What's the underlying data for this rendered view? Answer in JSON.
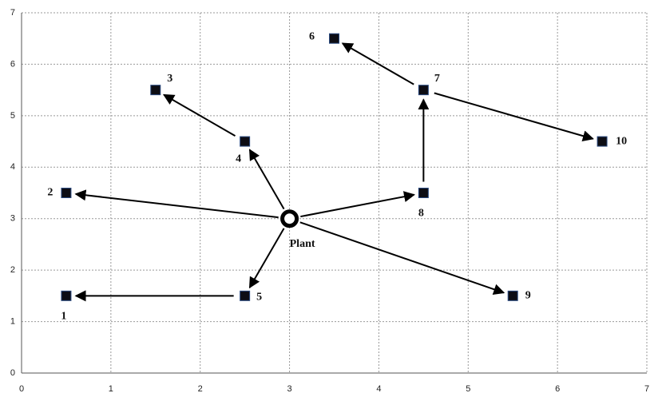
{
  "chart_data": {
    "type": "scatter",
    "nodes": [
      {
        "label": "1",
        "x": 0.5,
        "y": 1.5
      },
      {
        "label": "2",
        "x": 0.5,
        "y": 3.5
      },
      {
        "label": "3",
        "x": 1.5,
        "y": 5.5
      },
      {
        "label": "4",
        "x": 2.5,
        "y": 4.5
      },
      {
        "label": "5",
        "x": 2.5,
        "y": 1.5
      },
      {
        "label": "6",
        "x": 3.5,
        "y": 6.5
      },
      {
        "label": "7",
        "x": 4.5,
        "y": 5.5
      },
      {
        "label": "8",
        "x": 4.5,
        "y": 3.5
      },
      {
        "label": "9",
        "x": 5.5,
        "y": 1.5
      },
      {
        "label": "10",
        "x": 6.5,
        "y": 4.5
      },
      {
        "label": "Plant",
        "x": 3,
        "y": 3
      }
    ],
    "edges": [
      [
        10,
        1
      ],
      [
        10,
        3
      ],
      [
        3,
        2
      ],
      [
        10,
        4
      ],
      [
        4,
        0
      ],
      [
        10,
        7
      ],
      [
        7,
        6
      ],
      [
        6,
        5
      ],
      [
        6,
        9
      ],
      [
        10,
        8
      ]
    ],
    "xlim": [
      0,
      7
    ],
    "ylim": [
      0,
      7
    ],
    "xticks": [
      0,
      1,
      2,
      3,
      4,
      5,
      6,
      7
    ],
    "yticks": [
      0,
      1,
      2,
      3,
      4,
      5,
      6,
      7
    ],
    "grid": true
  }
}
